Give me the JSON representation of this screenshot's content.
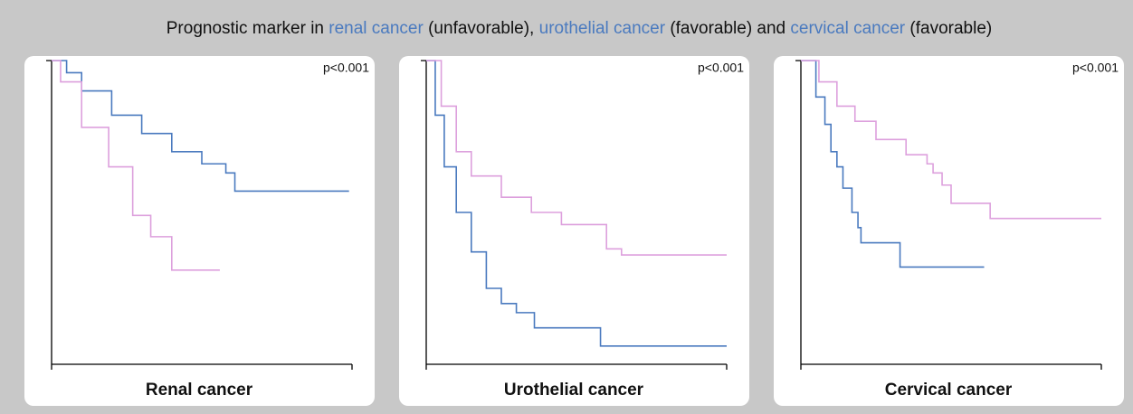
{
  "title": [
    "Prognostic marker in ",
    "renal cancer",
    " (unfavorable), ",
    "urothelial cancer",
    " (favorable) and ",
    "cervical cancer",
    " (favorable)"
  ],
  "title_highlight_color": "#4a7abf",
  "chart_data": [
    {
      "type": "line",
      "step": true,
      "title": "Renal cancer",
      "annotation": "p<0.001",
      "xlim": [
        0,
        1
      ],
      "ylim": [
        0,
        1
      ],
      "series": [
        {
          "color": "#4a7abf",
          "x": [
            0,
            0.05,
            0.1,
            0.2,
            0.3,
            0.4,
            0.5,
            0.58,
            0.61,
            0.99
          ],
          "values": [
            1,
            0.96,
            0.9,
            0.82,
            0.76,
            0.7,
            0.66,
            0.63,
            0.57,
            0.57
          ]
        },
        {
          "color": "#dda0dd",
          "x": [
            0,
            0.03,
            0.1,
            0.19,
            0.27,
            0.33,
            0.4,
            0.56
          ],
          "values": [
            1,
            0.93,
            0.78,
            0.65,
            0.49,
            0.42,
            0.31,
            0.31
          ]
        }
      ]
    },
    {
      "type": "line",
      "step": true,
      "title": "Urothelial cancer",
      "annotation": "p<0.001",
      "xlim": [
        0,
        1
      ],
      "ylim": [
        0,
        1
      ],
      "series": [
        {
          "color": "#4a7abf",
          "x": [
            0,
            0.03,
            0.06,
            0.1,
            0.15,
            0.2,
            0.25,
            0.3,
            0.36,
            0.58,
            1
          ],
          "values": [
            1,
            0.82,
            0.65,
            0.5,
            0.37,
            0.25,
            0.2,
            0.17,
            0.12,
            0.06,
            0.06
          ]
        },
        {
          "color": "#dda0dd",
          "x": [
            0,
            0.05,
            0.1,
            0.15,
            0.25,
            0.35,
            0.45,
            0.6,
            0.65,
            1
          ],
          "values": [
            1,
            0.85,
            0.7,
            0.62,
            0.55,
            0.5,
            0.46,
            0.38,
            0.36,
            0.36
          ]
        }
      ]
    },
    {
      "type": "line",
      "step": true,
      "title": "Cervical cancer",
      "annotation": "p<0.001",
      "xlim": [
        0,
        1
      ],
      "ylim": [
        0,
        1
      ],
      "series": [
        {
          "color": "#4a7abf",
          "x": [
            0,
            0.05,
            0.08,
            0.1,
            0.12,
            0.14,
            0.17,
            0.19,
            0.2,
            0.33,
            0.61
          ],
          "values": [
            1,
            0.88,
            0.79,
            0.7,
            0.65,
            0.58,
            0.5,
            0.45,
            0.4,
            0.32,
            0.32
          ]
        },
        {
          "color": "#dda0dd",
          "x": [
            0,
            0.06,
            0.12,
            0.18,
            0.25,
            0.35,
            0.42,
            0.44,
            0.47,
            0.5,
            0.63,
            1
          ],
          "values": [
            1,
            0.93,
            0.85,
            0.8,
            0.74,
            0.69,
            0.66,
            0.63,
            0.59,
            0.53,
            0.48,
            0.48
          ]
        }
      ]
    }
  ]
}
